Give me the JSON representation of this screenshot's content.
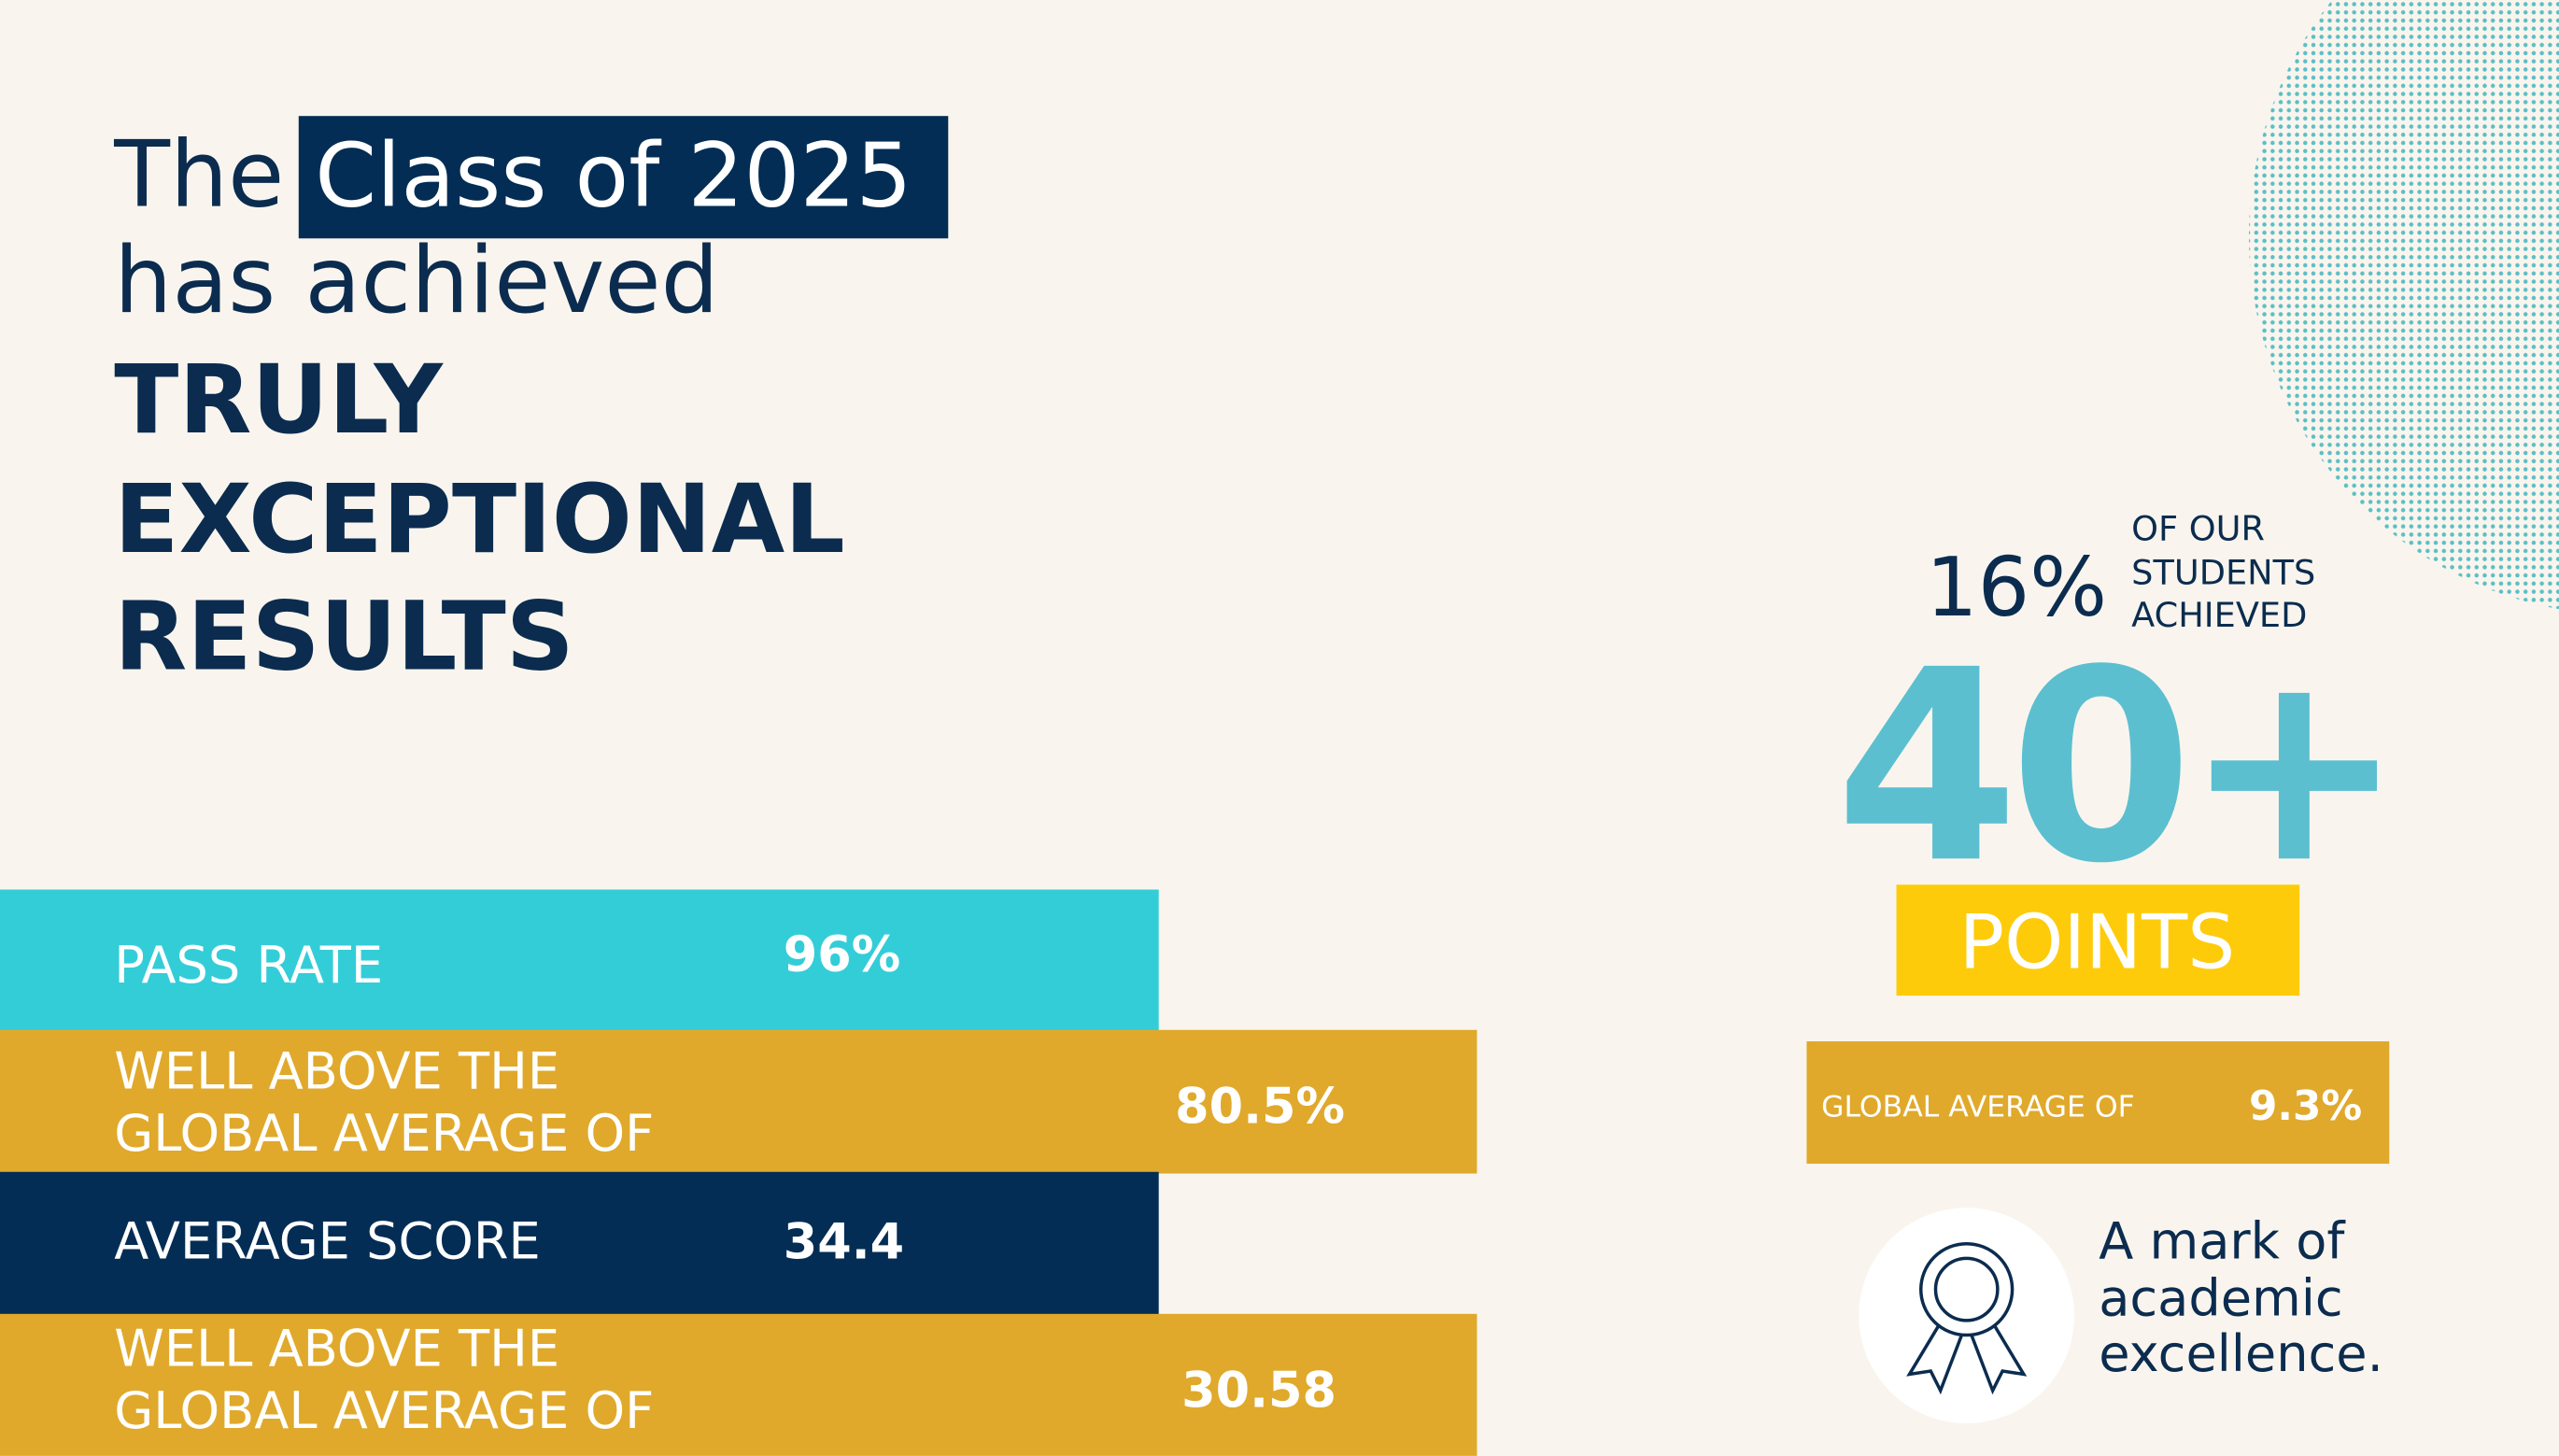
{
  "headline": {
    "line1_prefix": "The",
    "line1_highlight": "Class of 2025",
    "line2": "has achieved",
    "emphasis": [
      "TRULY",
      "EXCEPTIONAL",
      "RESULTS"
    ]
  },
  "stats": [
    {
      "label": [
        "PASS RATE"
      ],
      "value": "96%"
    },
    {
      "label": [
        "WELL ABOVE THE",
        "GLOBAL AVERAGE OF"
      ],
      "value": "80.5%"
    },
    {
      "label": [
        "AVERAGE SCORE"
      ],
      "value": "34.4"
    },
    {
      "label": [
        "WELL ABOVE THE",
        "GLOBAL AVERAGE OF"
      ],
      "value": "30.58"
    }
  ],
  "highlight": {
    "percent": "16%",
    "caption": [
      "OF OUR",
      "STUDENTS",
      "ACHIEVED"
    ],
    "big": "40+",
    "unit": "POINTS",
    "comparison_label": "GLOBAL AVERAGE OF",
    "comparison_value": "9.3%"
  },
  "badge": {
    "text": [
      "A mark of",
      "academic",
      "excellence."
    ]
  }
}
